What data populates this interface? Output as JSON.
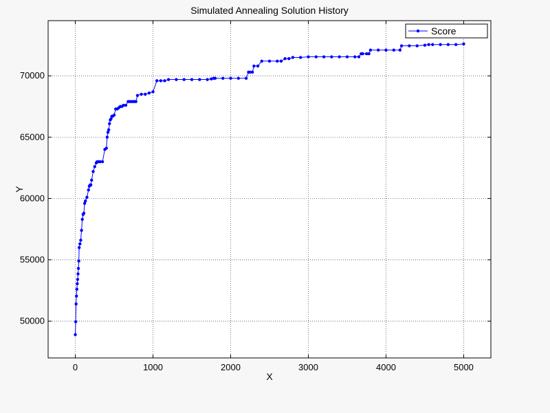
{
  "colors": {
    "series": "#0000ff",
    "background": "#f7f7f7",
    "plot_bg": "#ffffff",
    "grid": "#555555"
  },
  "chart_data": {
    "type": "line",
    "title": "Simulated Annealing Solution History",
    "xlabel": "X",
    "ylabel": "Y",
    "xlim": [
      -350,
      5350
    ],
    "ylim": [
      47000,
      74500
    ],
    "xticks": [
      0,
      1000,
      2000,
      3000,
      4000,
      5000
    ],
    "yticks": [
      50000,
      55000,
      60000,
      65000,
      70000
    ],
    "grid": true,
    "legend_position": "top-right",
    "series": [
      {
        "name": "Score",
        "marker": "dot",
        "x": [
          0,
          5,
          10,
          15,
          20,
          25,
          30,
          35,
          40,
          45,
          50,
          60,
          70,
          80,
          90,
          100,
          110,
          120,
          130,
          150,
          170,
          180,
          190,
          200,
          210,
          230,
          250,
          270,
          280,
          300,
          320,
          350,
          380,
          400,
          410,
          420,
          430,
          440,
          450,
          460,
          470,
          480,
          500,
          520,
          540,
          560,
          580,
          600,
          620,
          650,
          680,
          700,
          720,
          740,
          760,
          780,
          800,
          850,
          900,
          950,
          1000,
          1050,
          1100,
          1150,
          1200,
          1300,
          1400,
          1500,
          1600,
          1700,
          1750,
          1780,
          1800,
          1900,
          2000,
          2100,
          2200,
          2230,
          2250,
          2280,
          2300,
          2350,
          2400,
          2500,
          2600,
          2650,
          2700,
          2750,
          2800,
          2900,
          3000,
          3100,
          3200,
          3300,
          3400,
          3500,
          3600,
          3650,
          3680,
          3700,
          3750,
          3780,
          3800,
          3900,
          4000,
          4100,
          4180,
          4200,
          4300,
          4400,
          4500,
          4550,
          4600,
          4700,
          4800,
          4900,
          5000
        ],
        "values": [
          48900,
          49950,
          51400,
          52050,
          52600,
          53050,
          53400,
          53850,
          54300,
          54900,
          56000,
          56300,
          56600,
          57400,
          58300,
          58700,
          58800,
          59600,
          59800,
          60100,
          60700,
          61000,
          61100,
          61100,
          61500,
          62200,
          62600,
          62900,
          63000,
          63000,
          63000,
          63000,
          64000,
          64100,
          65000,
          65400,
          65600,
          66100,
          66400,
          66500,
          66700,
          66700,
          66800,
          67300,
          67300,
          67400,
          67500,
          67500,
          67600,
          67600,
          67900,
          67900,
          67900,
          67900,
          67900,
          67900,
          68400,
          68500,
          68500,
          68600,
          68700,
          69600,
          69600,
          69600,
          69700,
          69700,
          69700,
          69700,
          69700,
          69700,
          69750,
          69800,
          69800,
          69800,
          69800,
          69800,
          69800,
          70300,
          70300,
          70300,
          70800,
          70800,
          71200,
          71200,
          71200,
          71200,
          71400,
          71400,
          71500,
          71500,
          71550,
          71550,
          71550,
          71550,
          71550,
          71550,
          71550,
          71550,
          71800,
          71800,
          71800,
          71800,
          72100,
          72100,
          72100,
          72100,
          72100,
          72450,
          72450,
          72450,
          72500,
          72550,
          72550,
          72550,
          72550,
          72550,
          72600
        ]
      }
    ]
  }
}
